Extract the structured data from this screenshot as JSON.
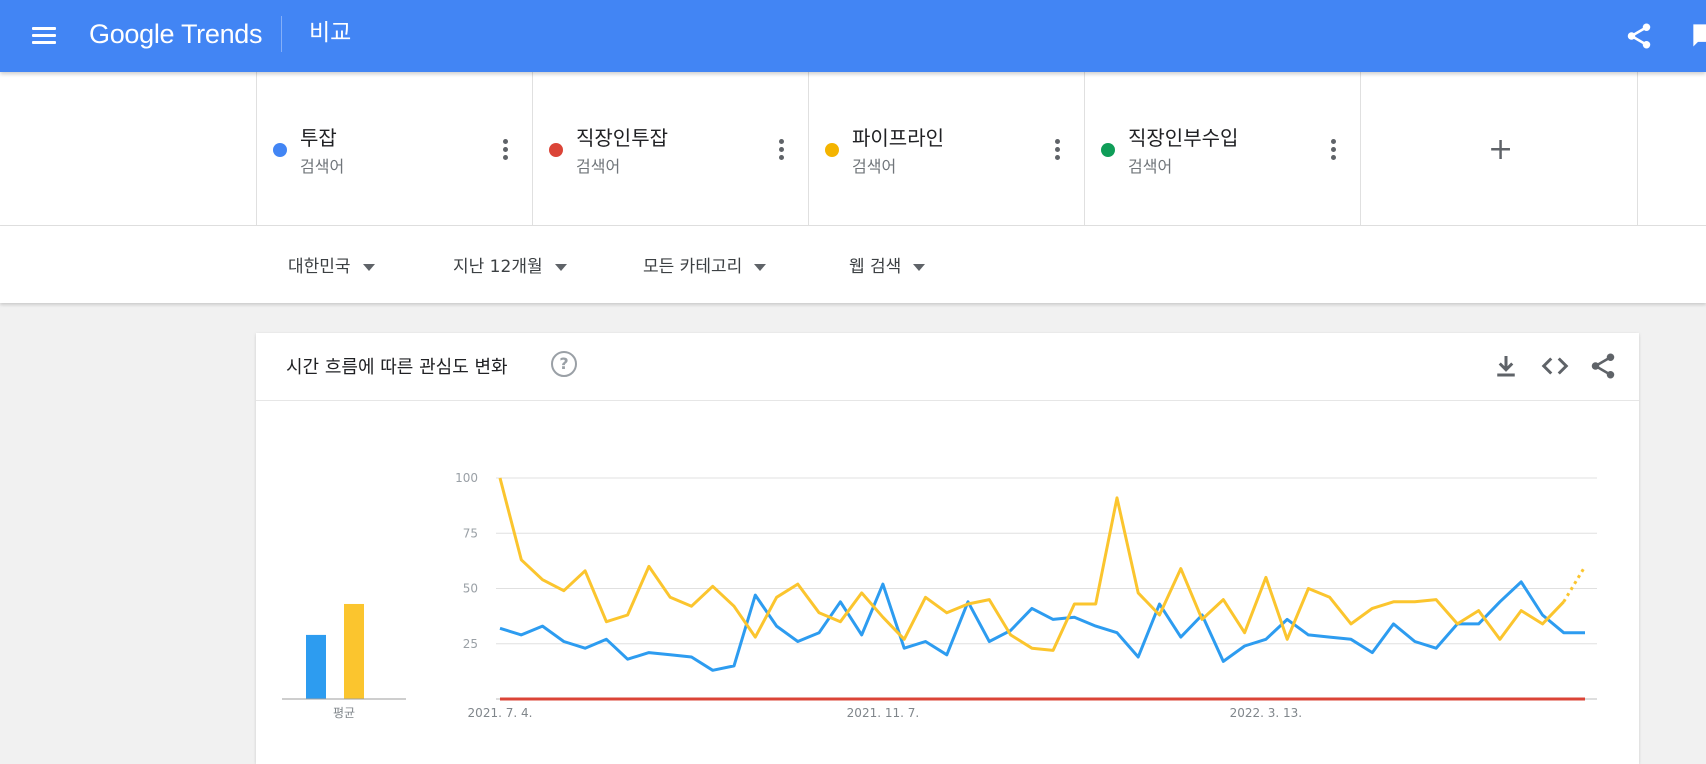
{
  "header": {
    "logo": "Google Trends",
    "title": "비교"
  },
  "terms": [
    {
      "name": "투잡",
      "type": "검색어",
      "color": "#4285f4"
    },
    {
      "name": "직장인투잡",
      "type": "검색어",
      "color": "#db4437"
    },
    {
      "name": "파이프라인",
      "type": "검색어",
      "color": "#f4b400"
    },
    {
      "name": "직장인부수입",
      "type": "검색어",
      "color": "#0f9d58"
    }
  ],
  "add_term_label": "+",
  "filters": {
    "region": "대한민국",
    "period": "지난 12개월",
    "category": "모든 카테고리",
    "search_type": "웹 검색"
  },
  "card": {
    "title": "시간 흐름에 따른 관심도 변화",
    "help": "?"
  },
  "chart_data": {
    "type": "line",
    "y_ticks": [
      "100",
      "75",
      "50",
      "25"
    ],
    "ylim": [
      0,
      100
    ],
    "x_tick_labels": [
      {
        "label": "2021. 7. 4.",
        "index": 0
      },
      {
        "label": "2021. 11. 7.",
        "index": 18
      },
      {
        "label": "2022. 3. 13.",
        "index": 36
      }
    ],
    "grid": true,
    "series": [
      {
        "name": "투잡",
        "color": "#2d9cf0",
        "values": [
          32,
          29,
          33,
          26,
          23,
          27,
          18,
          21,
          20,
          19,
          13,
          15,
          47,
          33,
          26,
          30,
          44,
          29,
          52,
          23,
          26,
          20,
          44,
          26,
          31,
          41,
          36,
          37,
          33,
          30,
          19,
          43,
          28,
          38,
          17,
          24,
          27,
          36,
          29,
          28,
          27,
          21,
          34,
          26,
          23,
          34,
          34,
          44,
          53,
          38,
          30,
          30
        ],
        "projected_from": null
      },
      {
        "name": "직장인투잡",
        "color": "#db4437",
        "values": [
          0,
          0,
          0,
          0,
          0,
          0,
          0,
          0,
          0,
          0,
          0,
          0,
          0,
          0,
          0,
          0,
          0,
          0,
          0,
          0,
          0,
          0,
          0,
          0,
          0,
          0,
          0,
          0,
          0,
          0,
          0,
          0,
          0,
          0,
          0,
          0,
          0,
          0,
          0,
          0,
          0,
          0,
          0,
          0,
          0,
          0,
          0,
          0,
          0,
          0,
          0,
          0
        ],
        "projected_from": null
      },
      {
        "name": "파이프라인",
        "color": "#fbc52e",
        "values": [
          100,
          63,
          54,
          49,
          58,
          35,
          38,
          60,
          46,
          42,
          51,
          42,
          28,
          46,
          52,
          39,
          35,
          48,
          37,
          27,
          46,
          39,
          43,
          45,
          29,
          23,
          22,
          43,
          43,
          91,
          48,
          38,
          59,
          36,
          45,
          30,
          55,
          27,
          50,
          46,
          34,
          41,
          44,
          44,
          45,
          34,
          40,
          27,
          40,
          34,
          44,
          60
        ],
        "projected_from": 50
      },
      {
        "name": "직장인부수입",
        "color": "#3c9a3c",
        "values": [
          0,
          0,
          0,
          0,
          0,
          0,
          0,
          0,
          0,
          0,
          0,
          0,
          0,
          0,
          0,
          0,
          0,
          0,
          0,
          0,
          0,
          0,
          0,
          0,
          0,
          0,
          0,
          0,
          0,
          0,
          0,
          0,
          0,
          0,
          0,
          0,
          0,
          0,
          0,
          0,
          0,
          0,
          0,
          0,
          0,
          0,
          0,
          0,
          0,
          0,
          0,
          0
        ],
        "projected_from": null
      }
    ],
    "averages": [
      {
        "name": "투잡",
        "value": 29,
        "color": "#2d9cf0"
      },
      {
        "name": "파이프라인",
        "value": 43,
        "color": "#fbc52e"
      }
    ],
    "average_label": "평균"
  }
}
